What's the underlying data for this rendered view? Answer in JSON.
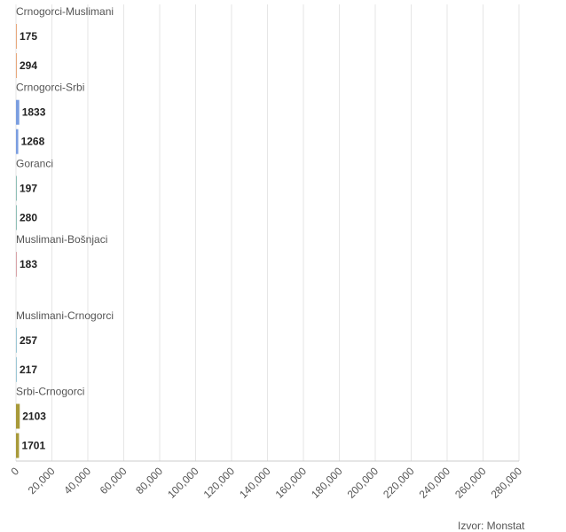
{
  "chart_data": {
    "type": "bar",
    "orientation": "horizontal",
    "categories": [
      "Crnogorci-Muslimani",
      "Crnogorci-Srbi",
      "Goranci",
      "Muslimani-Bošnjaci",
      "Muslimani-Crnogorci",
      "Srbi-Crnogorci"
    ],
    "series": [
      {
        "values": [
          175,
          1833,
          197,
          183,
          257,
          2103
        ]
      },
      {
        "values": [
          294,
          1268,
          280,
          null,
          217,
          1701
        ]
      }
    ],
    "category_colors": [
      "#e8a87c",
      "#7b9ee0",
      "#8fbfb7",
      "#d9a3a8",
      "#9cc7d6",
      "#a89a3a"
    ],
    "x_ticks": [
      "0",
      "20,000",
      "40,000",
      "60,000",
      "80,000",
      "100,000",
      "120,000",
      "140,000",
      "160,000",
      "180,000",
      "200,000",
      "220,000",
      "240,000",
      "260,000",
      "280,000"
    ],
    "xlim": [
      0,
      280000
    ],
    "grid": true,
    "legend": "none"
  },
  "source_text": "Izvor: Monstat"
}
